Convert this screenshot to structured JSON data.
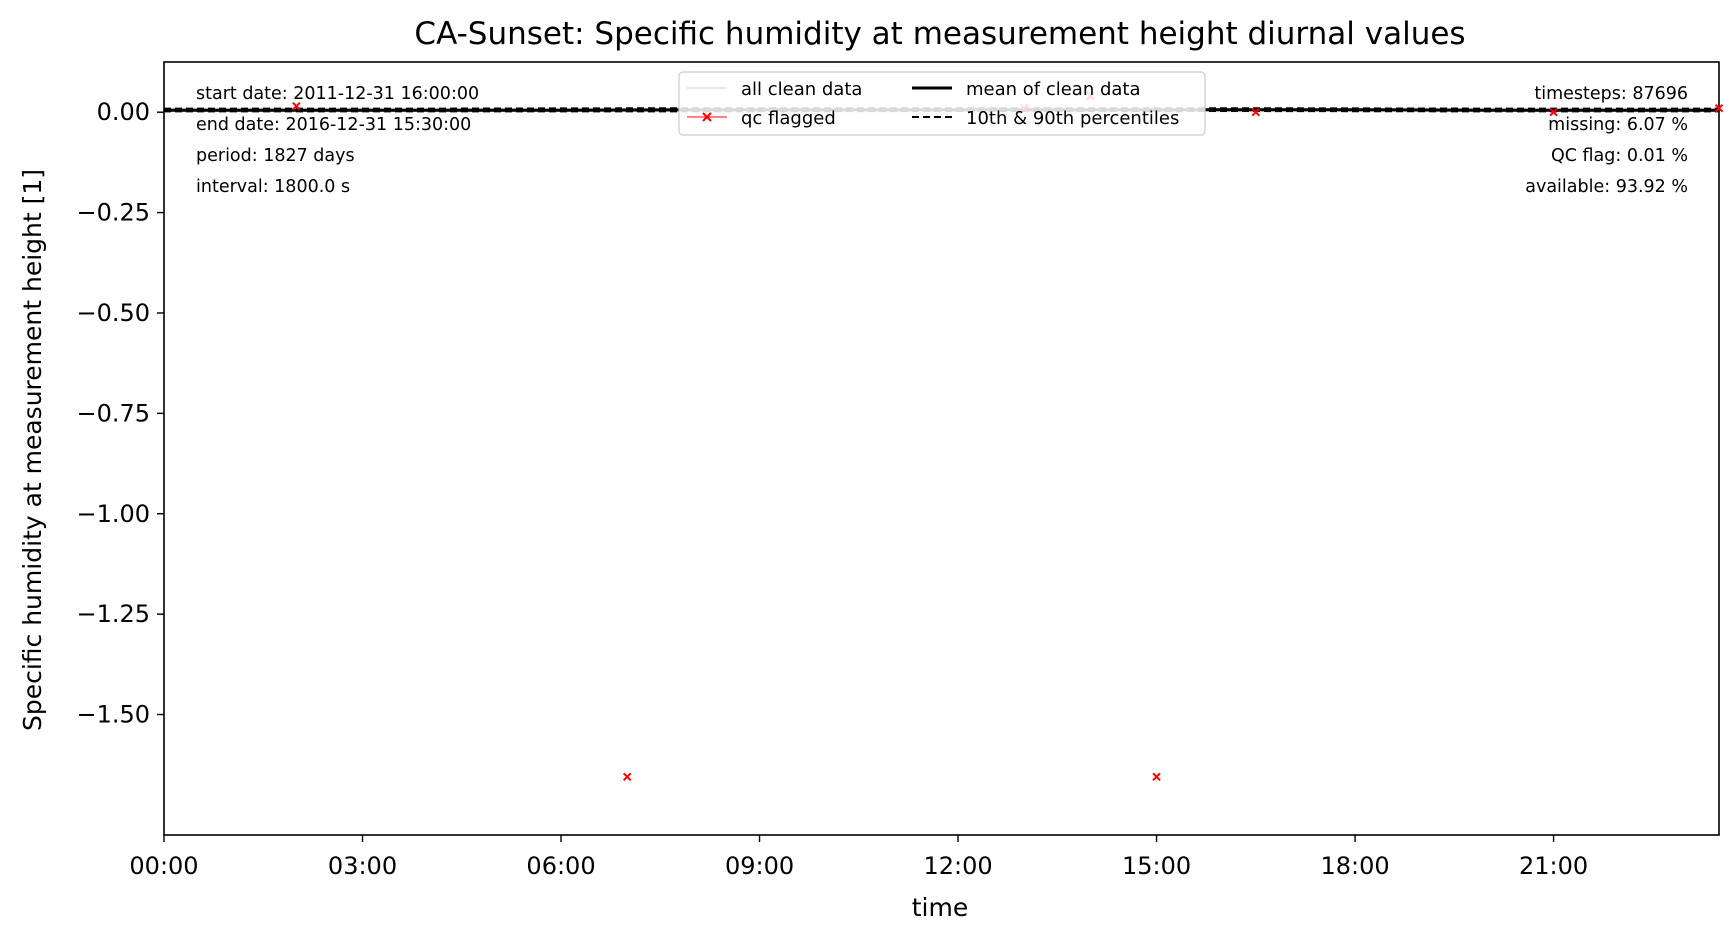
{
  "chart_data": {
    "type": "line",
    "title": "CA-Sunset: Specific humidity at measurement height diurnal values",
    "xlabel": "time",
    "ylabel": "Specific humidity at measurement height [1]",
    "xlim": [
      0,
      23.5
    ],
    "ylim": [
      -1.8,
      0.125
    ],
    "x_ticks": [
      {
        "value": 0,
        "label": "00:00"
      },
      {
        "value": 3,
        "label": "03:00"
      },
      {
        "value": 6,
        "label": "06:00"
      },
      {
        "value": 9,
        "label": "09:00"
      },
      {
        "value": 12,
        "label": "12:00"
      },
      {
        "value": 15,
        "label": "15:00"
      },
      {
        "value": 18,
        "label": "18:00"
      },
      {
        "value": 21,
        "label": "21:00"
      }
    ],
    "y_ticks": [
      {
        "value": 0.0,
        "label": "0.00"
      },
      {
        "value": -0.25,
        "label": "−0.25"
      },
      {
        "value": -0.5,
        "label": "−0.50"
      },
      {
        "value": -0.75,
        "label": "−0.75"
      },
      {
        "value": -1.0,
        "label": "−1.00"
      },
      {
        "value": -1.25,
        "label": "−1.25"
      },
      {
        "value": -1.5,
        "label": "−1.50"
      }
    ],
    "grid": false,
    "legend_placement": "top-center",
    "legend": [
      {
        "label": "all clean data",
        "style": "thin-line",
        "color": "#cccccc"
      },
      {
        "label": "qc flagged",
        "style": "line-x-marker",
        "color": "#ff0000"
      },
      {
        "label": "mean of clean data",
        "style": "thick-line",
        "color": "#000000"
      },
      {
        "label": "10th & 90th percentiles",
        "style": "dashed-line",
        "color": "#000000"
      }
    ],
    "series": [
      {
        "name": "mean of clean data",
        "color": "#000000",
        "x": [
          0,
          2,
          4,
          6,
          8,
          10,
          12,
          14,
          16,
          18,
          20,
          22,
          23.5
        ],
        "values": [
          0.005,
          0.005,
          0.005,
          0.005,
          0.006,
          0.006,
          0.006,
          0.006,
          0.006,
          0.006,
          0.005,
          0.005,
          0.005
        ]
      },
      {
        "name": "10th percentile",
        "color": "#000000",
        "x": [
          0,
          4,
          8,
          12,
          16,
          20,
          23.5
        ],
        "values": [
          0.002,
          0.002,
          0.002,
          0.003,
          0.003,
          0.002,
          0.002
        ]
      },
      {
        "name": "90th percentile",
        "color": "#000000",
        "x": [
          0,
          4,
          8,
          12,
          16,
          20,
          23.5
        ],
        "values": [
          0.009,
          0.009,
          0.01,
          0.01,
          0.01,
          0.009,
          0.009
        ]
      },
      {
        "name": "qc flagged",
        "color": "#ff0000",
        "points": [
          {
            "x": 2.0,
            "y": 0.015
          },
          {
            "x": 7.0,
            "y": -1.655
          },
          {
            "x": 13.0,
            "y": 0.01
          },
          {
            "x": 14.0,
            "y": 0.04
          },
          {
            "x": 15.0,
            "y": -1.655
          },
          {
            "x": 16.5,
            "y": 0.0
          },
          {
            "x": 21.0,
            "y": 0.0
          },
          {
            "x": 23.5,
            "y": 0.01
          }
        ]
      }
    ],
    "info_left": [
      "start date: 2011-12-31 16:00:00",
      "end date: 2016-12-31 15:30:00",
      "period: 1827 days",
      "interval: 1800.0 s"
    ],
    "info_right": [
      "timesteps: 87696",
      "missing: 6.07 %",
      "QC flag: 0.01 %",
      "available: 93.92 %"
    ]
  }
}
